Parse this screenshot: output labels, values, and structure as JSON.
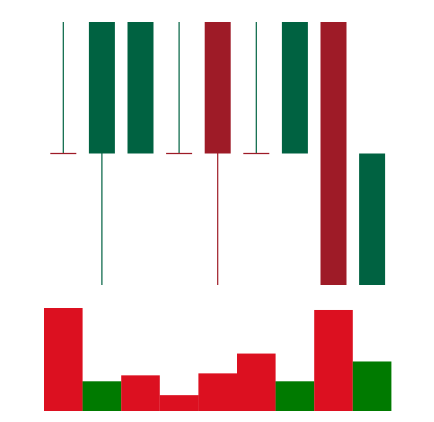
{
  "chart_data": [
    {
      "type": "candlestick",
      "title": "",
      "xlabel": "",
      "ylabel": "",
      "ylim": [
        0,
        4
      ],
      "grid": false,
      "legend": "none",
      "colors": {
        "up": "#006241",
        "down": "#9e1b27"
      },
      "candles": [
        {
          "open": 2,
          "high": 4,
          "low": 2,
          "close": 2
        },
        {
          "open": 2,
          "high": 4,
          "low": 0,
          "close": 4
        },
        {
          "open": 2,
          "high": 4,
          "low": 2,
          "close": 4
        },
        {
          "open": 2,
          "high": 4,
          "low": 2,
          "close": 2
        },
        {
          "open": 4,
          "high": 4,
          "low": 0,
          "close": 2
        },
        {
          "open": 2,
          "high": 4,
          "low": 2,
          "close": 2
        },
        {
          "open": 2,
          "high": 4,
          "low": 2,
          "close": 4
        },
        {
          "open": 4,
          "high": 4,
          "low": 0,
          "close": 0
        },
        {
          "open": 0,
          "high": 2,
          "low": 0,
          "close": 2
        }
      ]
    },
    {
      "type": "bar",
      "title": "",
      "xlabel": "",
      "ylabel": "",
      "ylim": [
        0,
        5.2
      ],
      "grid": false,
      "legend": "none",
      "colors": {
        "up": "#007a00",
        "down": "#dc1020"
      },
      "values": [
        5.2,
        1.5,
        1.8,
        0.8,
        1.9,
        2.9,
        1.5,
        5.1,
        2.5
      ],
      "directions": [
        "down",
        "up",
        "down",
        "down",
        "down",
        "down",
        "up",
        "down",
        "up"
      ]
    }
  ]
}
